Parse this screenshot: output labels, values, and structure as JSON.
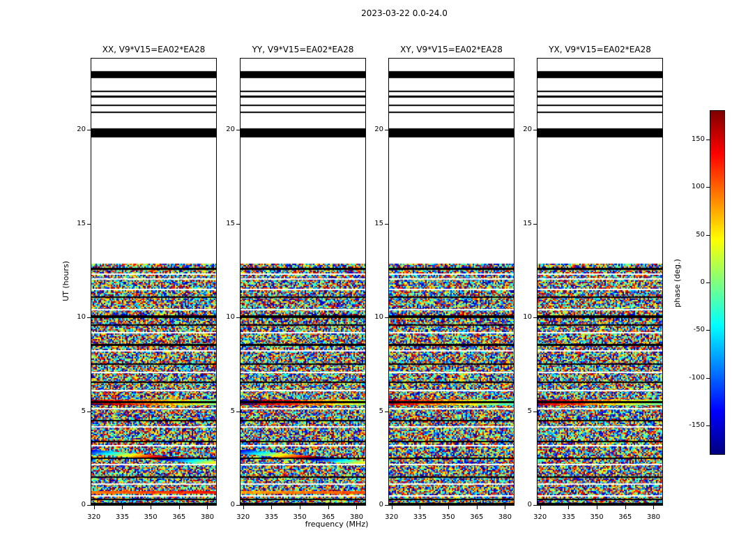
{
  "chart_data": {
    "type": "heatmap",
    "title": "2023-03-22 0.0-24.0",
    "xlabel": "frequency (MHz)",
    "ylabel": "UT (hours)",
    "xlim": [
      319,
      385
    ],
    "ylim": [
      0,
      23.8
    ],
    "xticks": [
      320,
      335,
      350,
      365,
      380
    ],
    "yticks": [
      0,
      5,
      10,
      15,
      20
    ],
    "panels": [
      {
        "pol": "XX",
        "title": "XX, V9*V15=EA02*EA28"
      },
      {
        "pol": "YY",
        "title": "YY, V9*V15=EA02*EA28"
      },
      {
        "pol": "XY",
        "title": "XY, V9*V15=EA02*EA28"
      },
      {
        "pol": "YX",
        "title": "YX, V9*V15=EA02*EA28"
      }
    ],
    "colorbar": {
      "label": "phase (deg.)",
      "vmin": -180,
      "vmax": 180,
      "ticks": [
        -150,
        -100,
        -50,
        0,
        50,
        100,
        150
      ],
      "colormap": "jet"
    },
    "noise_region": {
      "t_start": 0,
      "t_end": 12.85,
      "description": "random phase noise (uniform -180..180 deg)"
    },
    "black_bands": [
      [
        19.6,
        20.08
      ],
      [
        20.9,
        20.98
      ],
      [
        21.28,
        21.36
      ],
      [
        21.72,
        21.82
      ],
      [
        22.0,
        22.08
      ],
      [
        22.75,
        23.12
      ]
    ],
    "noise_black_lines": [
      [
        12.6,
        3
      ],
      [
        11.1,
        2
      ],
      [
        10.05,
        4
      ],
      [
        9.6,
        2
      ],
      [
        8.55,
        3
      ],
      [
        7.5,
        2
      ],
      [
        6.55,
        2
      ],
      [
        5.5,
        3
      ],
      [
        4.5,
        2
      ],
      [
        3.4,
        2
      ],
      [
        2.5,
        2
      ],
      [
        1.5,
        2
      ],
      [
        0.3,
        2
      ],
      [
        0.05,
        3
      ]
    ],
    "noise_white_gaps": [
      12.3,
      12.05,
      11.5,
      10.4,
      9.2,
      8.2,
      7.05,
      6.1,
      5.15,
      4.15,
      3.15,
      2.15,
      1.1,
      0.5
    ],
    "coherent_bands": [
      {
        "t0": 5.3,
        "t1": 5.62,
        "v0": 0.9,
        "slope": -0.5,
        "jitter": 0.18
      },
      {
        "t0": 0.6,
        "t1": 0.74,
        "v0": 0.65,
        "slope": 0.1,
        "jitter": 0.08,
        "panels": [
          0,
          1
        ]
      }
    ],
    "diagonal_features": [
      {
        "panels": [
          0,
          1
        ],
        "t_left": 2.95,
        "t_right": 2.35,
        "thickness": 6,
        "cycles": 1.5
      }
    ]
  }
}
